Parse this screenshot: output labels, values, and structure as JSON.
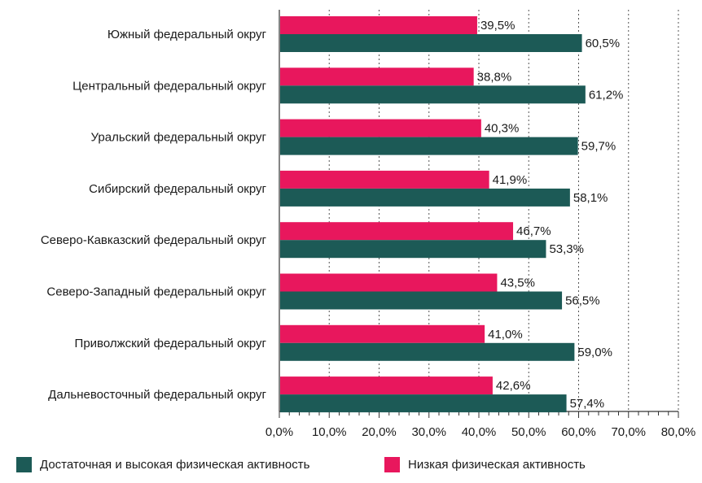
{
  "chart_data": {
    "type": "bar",
    "orientation": "horizontal",
    "categories": [
      "Южный федеральный округ",
      "Центральный федеральный округ",
      "Уральский федеральный округ",
      "Сибирский федеральный округ",
      "Северо-Кавказский федеральный округ",
      "Северо-Западный федеральный округ",
      "Приволжский федеральный округ",
      "Дальневосточный федеральный округ"
    ],
    "series": [
      {
        "name": "Низкая физическая активность",
        "color": "#e8175d",
        "values": [
          39.5,
          38.8,
          40.3,
          41.9,
          46.7,
          43.5,
          41.0,
          42.6
        ],
        "labels": [
          "39,5%",
          "38,8%",
          "40,3%",
          "41,9%",
          "46,7%",
          "43,5%",
          "41,0%",
          "42,6%"
        ]
      },
      {
        "name": "Достаточная и высокая физическая активность",
        "color": "#1c5a56",
        "values": [
          60.5,
          61.2,
          59.7,
          58.1,
          53.3,
          56.5,
          59.0,
          57.4
        ],
        "labels": [
          "60,5%",
          "61,2%",
          "59,7%",
          "58,1%",
          "53,3%",
          "56,5%",
          "59,0%",
          "57,4%"
        ]
      }
    ],
    "xlim": [
      0,
      80
    ],
    "xticks": [
      0,
      10,
      20,
      30,
      40,
      50,
      60,
      70,
      80
    ],
    "xtick_labels": [
      "0,0%",
      "10,0%",
      "20,0%",
      "30,0%",
      "40,0%",
      "50,0%",
      "60,0%",
      "70,0%",
      "80,0%"
    ],
    "grid": "vertical dashed",
    "legend_position": "bottom",
    "legend": [
      {
        "label": "Достаточная и высокая физическая активность",
        "color": "#1c5a56"
      },
      {
        "label": "Низкая физическая активность",
        "color": "#e8175d"
      }
    ]
  }
}
